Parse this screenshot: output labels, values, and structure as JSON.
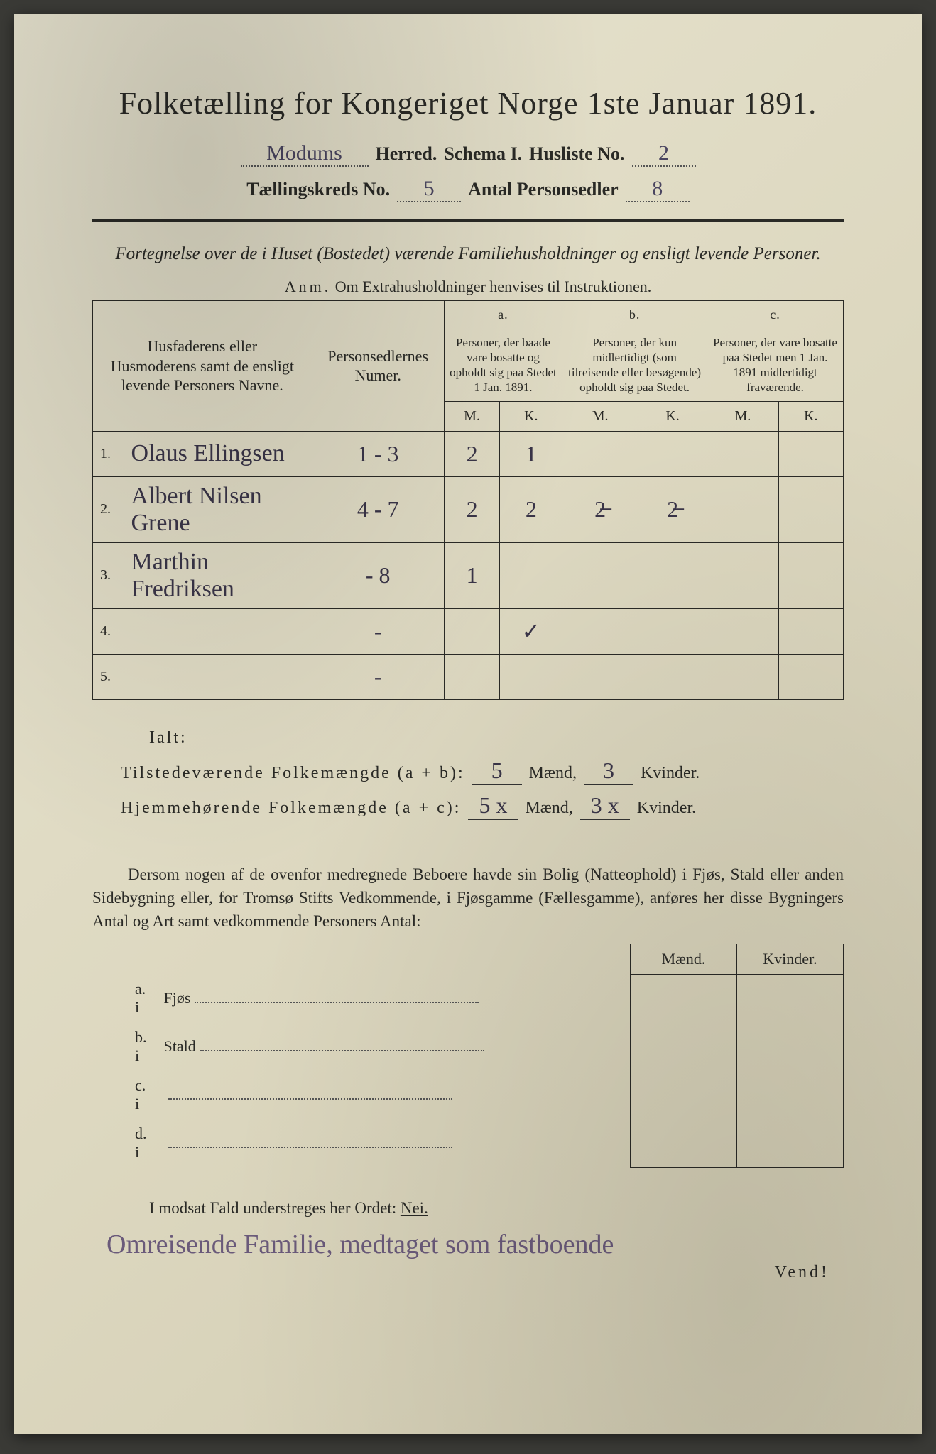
{
  "title": "Folketælling for Kongeriget Norge 1ste Januar 1891.",
  "header": {
    "herred_value": "Modums",
    "herred_label": "Herred.",
    "schema_label": "Schema I.",
    "husliste_label": "Husliste No.",
    "husliste_value": "2",
    "kreds_label": "Tællingskreds No.",
    "kreds_value": "5",
    "antal_label": "Antal Personsedler",
    "antal_value": "8"
  },
  "subtitle": "Fortegnelse over de i Huset (Bostedet) værende Familiehusholdninger og ensligt levende Personer.",
  "anm_label": "Anm.",
  "anm_text": "Om Extrahusholdninger henvises til Instruktionen.",
  "table": {
    "col_name": "Husfaderens eller Husmoderens samt de ensligt levende Personers Navne.",
    "col_numer": "Personsedlernes Numer.",
    "abc": {
      "a": "a.",
      "b": "b.",
      "c": "c."
    },
    "col_a": "Personer, der baade vare bosatte og opholdt sig paa Stedet 1 Jan. 1891.",
    "col_b": "Personer, der kun midlertidigt (som tilreisende eller besøgende) opholdt sig paa Stedet.",
    "col_c": "Personer, der vare bosatte paa Stedet men 1 Jan. 1891 midlertidigt fraværende.",
    "mk": {
      "m": "M.",
      "k": "K."
    },
    "rows": [
      {
        "n": "1.",
        "name": "Olaus Ellingsen",
        "numer": "1 - 3",
        "am": "2",
        "ak": "1",
        "bm": "",
        "bk": "",
        "cm": "",
        "ck": ""
      },
      {
        "n": "2.",
        "name": "Albert Nilsen Grene",
        "numer": "4 - 7",
        "am": "2",
        "ak": "2",
        "bm": "2̶",
        "bk": "2̶",
        "cm": "",
        "ck": ""
      },
      {
        "n": "3.",
        "name": "Marthin Fredriksen",
        "numer": "- 8",
        "am": "1",
        "ak": "",
        "bm": "",
        "bk": "",
        "cm": "",
        "ck": ""
      },
      {
        "n": "4.",
        "name": "",
        "numer": "-",
        "am": "",
        "ak": "✓",
        "bm": "",
        "bk": "",
        "cm": "",
        "ck": ""
      },
      {
        "n": "5.",
        "name": "",
        "numer": "-",
        "am": "",
        "ak": "",
        "bm": "",
        "bk": "",
        "cm": "",
        "ck": ""
      }
    ]
  },
  "totals": {
    "ialt": "Ialt:",
    "line1_lbl": "Tilstedeværende Folkemængde (a + b):",
    "line1_m": "5",
    "line1_k": "3",
    "line2_lbl": "Hjemmehørende Folkemængde (a + c):",
    "line2_m": "5 x",
    "line2_k": "3 x",
    "maend": "Mænd,",
    "kvinder": "Kvinder."
  },
  "para": "Dersom nogen af de ovenfor medregnede Beboere havde sin Bolig (Natteophold) i Fjøs, Stald eller anden Sidebygning eller, for Tromsø Stifts Vedkommende, i Fjøsgamme (Fællesgamme), anføres her disse Bygningers Antal og Art samt vedkommende Personers Antal:",
  "mk_headers": {
    "m": "Mænd.",
    "k": "Kvinder."
  },
  "mk_rows": [
    {
      "lead": "a.  i",
      "label": "Fjøs"
    },
    {
      "lead": "b.  i",
      "label": "Stald"
    },
    {
      "lead": "c.  i",
      "label": ""
    },
    {
      "lead": "d.  i",
      "label": ""
    }
  ],
  "nei_line_pre": "I modsat Fald understreges her Ordet: ",
  "nei_word": "Nei.",
  "handnote": "Omreisende Familie, medtaget som fastboende",
  "vend": "Vend!",
  "colors": {
    "paper": "#e0dbc4",
    "ink": "#2a2a26",
    "handwriting": "#4a4560",
    "purple_note": "#6a5a7a"
  }
}
